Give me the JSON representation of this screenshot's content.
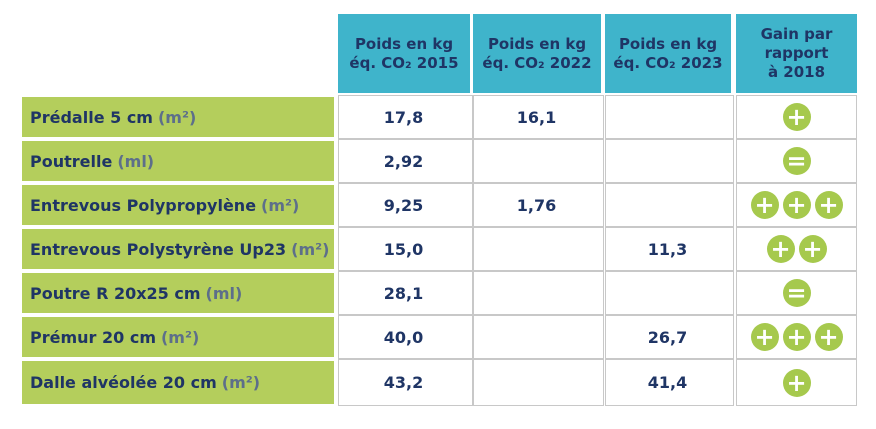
{
  "table": {
    "header": [
      [
        "Poids en kg",
        "éq. CO₂ 2015"
      ],
      [
        "Poids en kg",
        "éq. CO₂ 2022"
      ],
      [
        "Poids en kg",
        "éq. CO₂ 2023"
      ],
      [
        "Gain par",
        "rapport",
        "à 2018"
      ]
    ],
    "rows": [
      {
        "label": "Prédalle 5 cm",
        "unit": "(m²)",
        "values": [
          "17,8",
          "16,1",
          null
        ],
        "gain": [
          "+"
        ]
      },
      {
        "label": "Poutrelle",
        "unit": "(ml)",
        "values": [
          "2,92",
          null,
          null
        ],
        "gain": [
          "="
        ]
      },
      {
        "label": "Entrevous Polypropylène",
        "unit": "(m²)",
        "values": [
          "9,25",
          "1,76",
          null
        ],
        "gain": [
          "+",
          "+",
          "+"
        ]
      },
      {
        "label": "Entrevous Polystyrène Up23",
        "unit": "(m²)",
        "values": [
          "15,0",
          null,
          "11,3"
        ],
        "gain": [
          "+",
          "+"
        ]
      },
      {
        "label": "Poutre R 20x25 cm",
        "unit": "(ml)",
        "values": [
          "28,1",
          null,
          null
        ],
        "gain": [
          "="
        ]
      },
      {
        "label": "Prémur 20 cm",
        "unit": "(m²)",
        "values": [
          "40,0",
          null,
          "26,7"
        ],
        "gain": [
          "+",
          "+",
          "+"
        ]
      },
      {
        "label": "Dalle alvéolée 20 cm",
        "unit": "(m²)",
        "values": [
          "43,2",
          null,
          "41,4"
        ],
        "gain": [
          "+"
        ]
      }
    ]
  }
}
